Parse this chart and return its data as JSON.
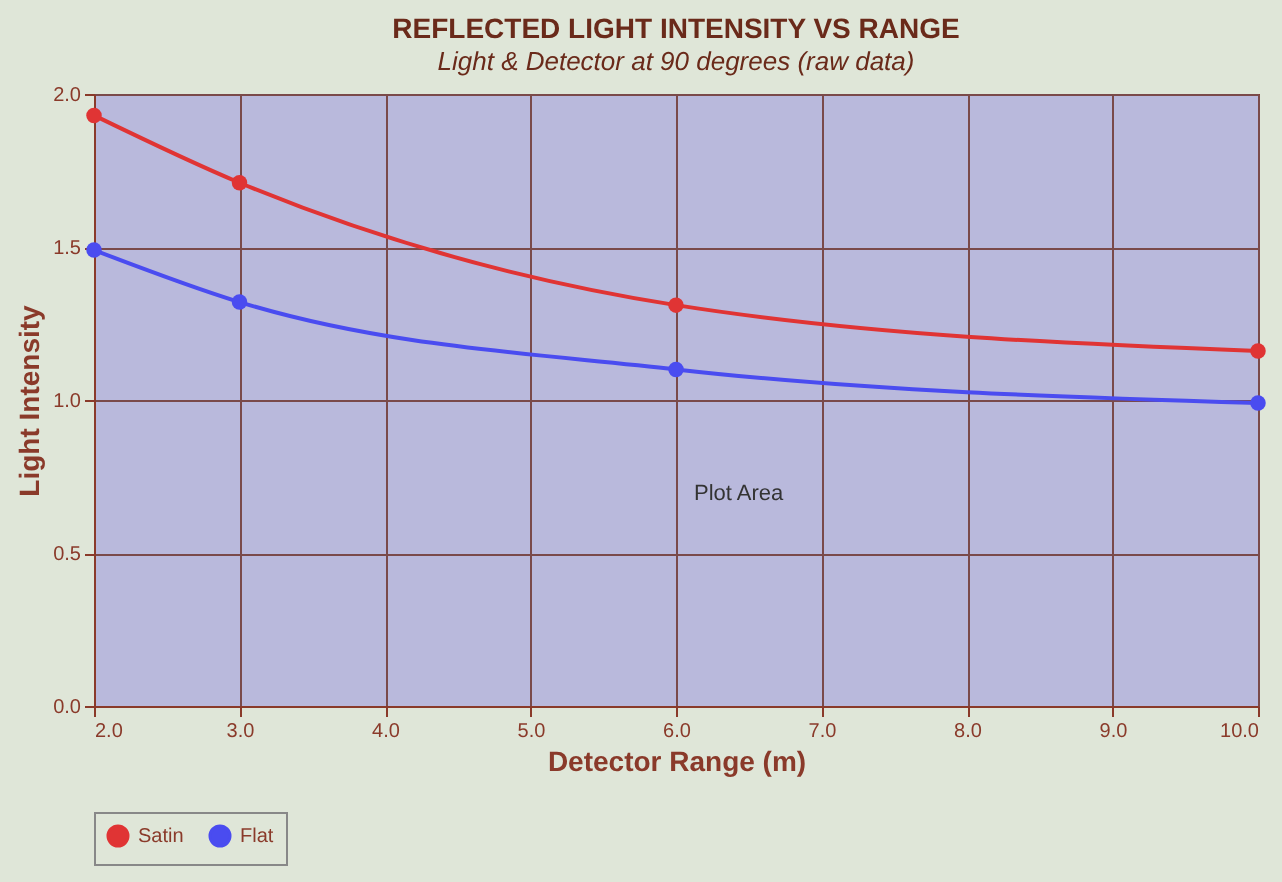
{
  "chart_data": {
    "type": "line",
    "title": "REFLECTED LIGHT INTENSITY VS RANGE",
    "subtitle": "Light & Detector at 90 degrees (raw data)",
    "xlabel": "Detector Range (m)",
    "ylabel": "Light Intensity",
    "x": [
      2,
      3,
      6,
      10
    ],
    "series": [
      {
        "name": "Satin",
        "color": "#e03434",
        "values": [
          1.93,
          1.71,
          1.31,
          1.16
        ]
      },
      {
        "name": "Flat",
        "color": "#4a4cf0",
        "values": [
          1.49,
          1.32,
          1.1,
          0.99
        ]
      }
    ],
    "xlim": [
      2,
      10
    ],
    "xticks": [
      {
        "value": 2,
        "label": "2.0"
      },
      {
        "value": 3,
        "label": "3.0"
      },
      {
        "value": 4,
        "label": "4.0"
      },
      {
        "value": 5,
        "label": "5.0"
      },
      {
        "value": 6,
        "label": "6.0"
      },
      {
        "value": 7,
        "label": "7.0"
      },
      {
        "value": 8,
        "label": "8.0"
      },
      {
        "value": 9,
        "label": "9.0"
      },
      {
        "value": 10,
        "label": "10.0"
      }
    ],
    "ylim": [
      0,
      2
    ],
    "yticks": [
      {
        "value": 0,
        "label": "0.0"
      },
      {
        "value": 0.5,
        "label": "0.5"
      },
      {
        "value": 1,
        "label": "1.0"
      },
      {
        "value": 1.5,
        "label": "1.5"
      },
      {
        "value": 2,
        "label": "2.0"
      }
    ],
    "annotations": [
      "Plot Area"
    ],
    "grid": true,
    "legend": "bottom",
    "marker": "circle",
    "line_style": "solid"
  }
}
